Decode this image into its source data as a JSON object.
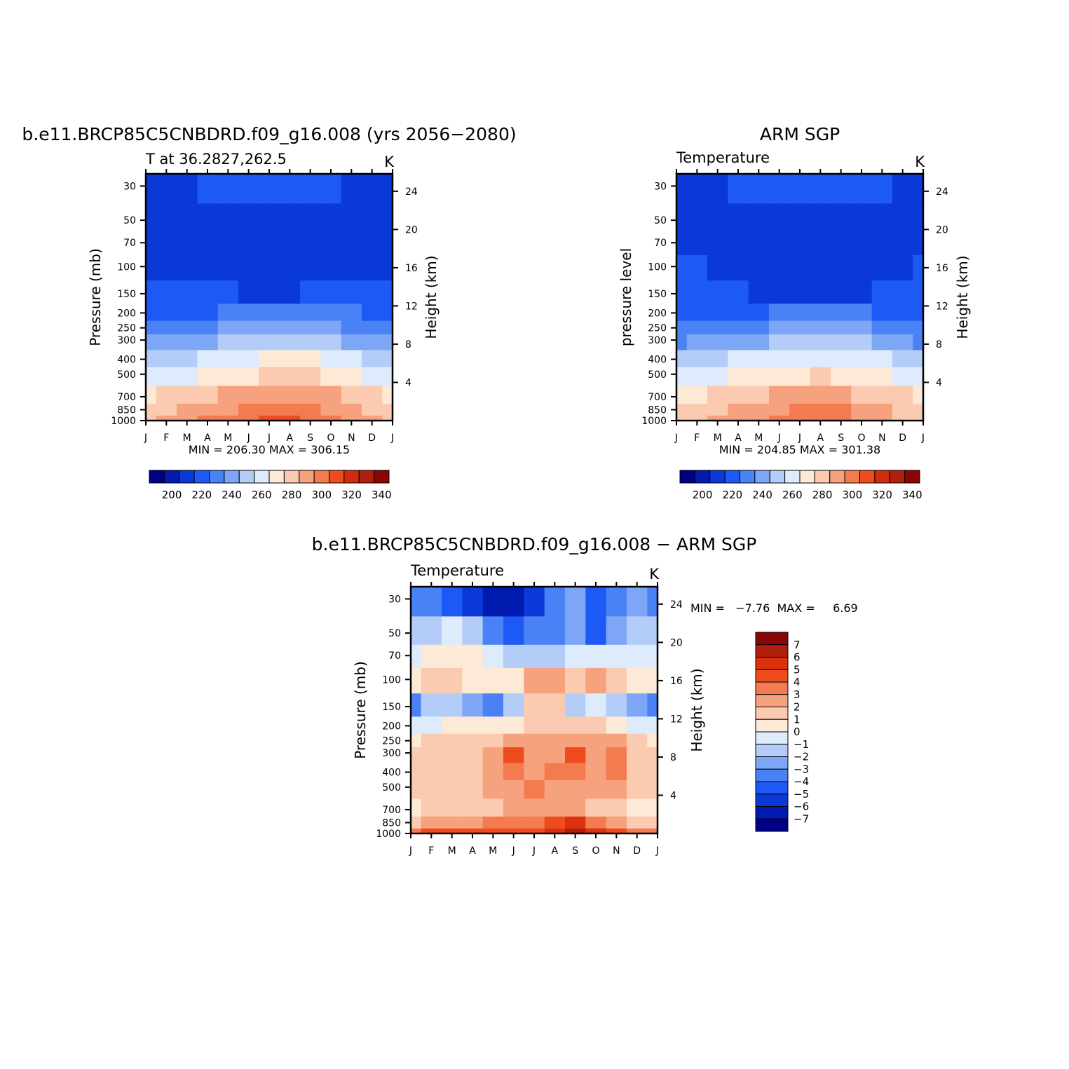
{
  "chart_data": [
    {
      "type": "heatmap",
      "panel": "model",
      "title": "b.e11.BRCP85C5CNBDRD.f09_g16.008 (yrs 2056−2080)",
      "left_label": "T at 36.2827,262.5",
      "units": "K",
      "ylabel": "Pressure (mb)",
      "ylabel_right": "Height (km)",
      "x_labels": [
        "J",
        "F",
        "M",
        "A",
        "M",
        "J",
        "J",
        "A",
        "S",
        "O",
        "N",
        "D",
        "J"
      ],
      "y_labels": [
        "30",
        "50",
        "70",
        "100",
        "150",
        "200",
        "250",
        "300",
        "400",
        "500",
        "700",
        "850",
        "1000"
      ],
      "height_labels": [
        "24",
        "20",
        "16",
        "12",
        "8",
        "4"
      ],
      "stats": "MIN = 206.30  MAX = 306.15",
      "colorbar_labels": [
        "200",
        "220",
        "240",
        "260",
        "280",
        "300",
        "320",
        "340"
      ],
      "months": [
        "Jan",
        "Feb",
        "Mar",
        "Apr",
        "May",
        "Jun",
        "Jul",
        "Aug",
        "Sep",
        "Oct",
        "Nov",
        "Dec",
        "Jan"
      ],
      "levels": [
        1000,
        850,
        700,
        500,
        400,
        300,
        250,
        200,
        150,
        100,
        70,
        50,
        30
      ],
      "temperature_K": [
        [
          284,
          288,
          292,
          296,
          299,
          302,
          305,
          306,
          303,
          298,
          292,
          288,
          284
        ],
        [
          280,
          283,
          287,
          291,
          294,
          297,
          300,
          301,
          299,
          294,
          288,
          284,
          280
        ],
        [
          273,
          276,
          279,
          283,
          286,
          289,
          292,
          293,
          291,
          286,
          281,
          277,
          273
        ],
        [
          259,
          261,
          264,
          268,
          271,
          274,
          277,
          278,
          276,
          272,
          267,
          263,
          259
        ],
        [
          249,
          251,
          254,
          257,
          260,
          263,
          266,
          267,
          265,
          261,
          256,
          252,
          249
        ],
        [
          235,
          237,
          239,
          242,
          245,
          248,
          251,
          252,
          250,
          246,
          242,
          238,
          235
        ],
        [
          227,
          228,
          230,
          232,
          235,
          238,
          241,
          242,
          240,
          236,
          232,
          229,
          227
        ],
        [
          222,
          222,
          223,
          224,
          225,
          227,
          229,
          230,
          229,
          227,
          225,
          223,
          222
        ],
        [
          217,
          217,
          217,
          216,
          215,
          214,
          214,
          214,
          215,
          216,
          217,
          217,
          217
        ],
        [
          214,
          214,
          214,
          213,
          212,
          211,
          210,
          210,
          211,
          212,
          213,
          214,
          214
        ],
        [
          212,
          212,
          212,
          212,
          211,
          210,
          210,
          210,
          210,
          210,
          211,
          212,
          212
        ],
        [
          210,
          211,
          212,
          213,
          214,
          214,
          214,
          214,
          214,
          214,
          213,
          211,
          210
        ],
        [
          207,
          210,
          213,
          215,
          217,
          218,
          219,
          219,
          218,
          216,
          213,
          210,
          207
        ]
      ]
    },
    {
      "type": "heatmap",
      "panel": "obs",
      "title": "ARM SGP",
      "left_label": "Temperature",
      "units": "K",
      "ylabel": "pressure level",
      "ylabel_right": "Height (km)",
      "x_labels": [
        "J",
        "F",
        "M",
        "A",
        "M",
        "J",
        "J",
        "A",
        "S",
        "O",
        "N",
        "D",
        "J"
      ],
      "y_labels": [
        "30",
        "50",
        "70",
        "100",
        "150",
        "200",
        "250",
        "300",
        "400",
        "500",
        "700",
        "850",
        "1000"
      ],
      "height_labels": [
        "24",
        "20",
        "16",
        "12",
        "8",
        "4"
      ],
      "stats": "MIN = 204.85  MAX = 301.38",
      "colorbar_labels": [
        "200",
        "220",
        "240",
        "260",
        "280",
        "300",
        "320",
        "340"
      ],
      "months": [
        "Jan",
        "Feb",
        "Mar",
        "Apr",
        "May",
        "Jun",
        "Jul",
        "Aug",
        "Sep",
        "Oct",
        "Nov",
        "Dec",
        "Jan"
      ],
      "levels": [
        1000,
        850,
        700,
        500,
        400,
        300,
        250,
        200,
        150,
        100,
        70,
        50,
        30
      ],
      "temperature_K": [
        [
          281,
          284,
          287,
          291,
          294,
          297,
          300,
          301,
          298,
          294,
          288,
          284,
          281
        ],
        [
          277,
          279,
          283,
          287,
          290,
          293,
          296,
          297,
          295,
          290,
          285,
          280,
          277
        ],
        [
          271,
          273,
          276,
          280,
          283,
          286,
          289,
          290,
          288,
          284,
          279,
          275,
          271
        ],
        [
          258,
          260,
          262,
          266,
          269,
          272,
          274,
          275,
          273,
          270,
          265,
          261,
          258
        ],
        [
          248,
          250,
          252,
          255,
          258,
          261,
          263,
          264,
          262,
          259,
          255,
          251,
          248
        ],
        [
          234,
          236,
          238,
          241,
          244,
          247,
          249,
          250,
          248,
          245,
          241,
          237,
          234
        ],
        [
          226,
          227,
          229,
          231,
          234,
          237,
          239,
          240,
          238,
          235,
          231,
          228,
          226
        ],
        [
          222,
          222,
          222,
          223,
          224,
          226,
          227,
          228,
          227,
          225,
          224,
          223,
          222
        ],
        [
          219,
          218,
          217,
          216,
          214,
          212,
          212,
          212,
          213,
          214,
          216,
          218,
          219
        ],
        [
          216,
          215,
          214,
          213,
          212,
          211,
          211,
          211,
          211,
          212,
          213,
          214,
          216
        ],
        [
          212,
          213,
          212,
          211,
          211,
          211,
          211,
          211,
          211,
          211,
          212,
          213,
          212
        ],
        [
          210,
          212,
          213,
          214,
          214,
          214,
          214,
          214,
          214,
          214,
          213,
          211,
          210
        ],
        [
          210,
          212,
          214,
          216,
          218,
          219,
          221,
          221,
          220,
          218,
          216,
          213,
          210
        ]
      ]
    },
    {
      "type": "heatmap",
      "panel": "difference",
      "title": "b.e11.BRCP85C5CNBDRD.f09_g16.008 − ARM SGP",
      "left_label": "Temperature",
      "units": "K",
      "ylabel": "Pressure (mb)",
      "ylabel_right": "Height (km)",
      "x_labels": [
        "J",
        "F",
        "M",
        "A",
        "M",
        "J",
        "J",
        "A",
        "S",
        "O",
        "N",
        "D",
        "J"
      ],
      "y_labels": [
        "30",
        "50",
        "70",
        "100",
        "150",
        "200",
        "250",
        "300",
        "400",
        "500",
        "700",
        "850",
        "1000"
      ],
      "height_labels": [
        "24",
        "20",
        "16",
        "12",
        "8",
        "4"
      ],
      "stats": "MIN =   −7.76  MAX =     6.69",
      "colorbar_labels": [
        "7",
        "6",
        "5",
        "4",
        "3",
        "2",
        "1",
        "0",
        "−1",
        "−2",
        "−3",
        "−4",
        "−5",
        "−6",
        "−7"
      ],
      "months": [
        "Jan",
        "Feb",
        "Mar",
        "Apr",
        "May",
        "Jun",
        "Jul",
        "Aug",
        "Sep",
        "Oct",
        "Nov",
        "Dec",
        "Jan"
      ],
      "levels": [
        1000,
        850,
        700,
        500,
        400,
        300,
        250,
        200,
        150,
        100,
        70,
        50,
        30
      ],
      "temperature_diff_K": [
        [
          3.5,
          4.0,
          4.2,
          4.4,
          4.2,
          4.5,
          4.8,
          5.5,
          6.5,
          5.0,
          4.5,
          3.6,
          3.5
        ],
        [
          1.8,
          2.5,
          2.8,
          2.8,
          3.0,
          3.2,
          3.6,
          4.5,
          5.5,
          3.5,
          2.8,
          1.8,
          1.8
        ],
        [
          0.5,
          1.5,
          1.5,
          1.2,
          1.6,
          2.0,
          2.5,
          2.0,
          2.2,
          1.8,
          1.6,
          0.8,
          0.5
        ],
        [
          1.2,
          1.5,
          1.6,
          1.5,
          2.2,
          2.6,
          3.0,
          2.8,
          2.8,
          2.4,
          2.5,
          1.5,
          1.2
        ],
        [
          1.5,
          1.6,
          1.8,
          1.7,
          2.8,
          3.2,
          2.6,
          3.0,
          3.6,
          2.6,
          3.0,
          1.8,
          1.5
        ],
        [
          1.2,
          1.4,
          1.8,
          1.6,
          2.8,
          4.2,
          2.8,
          2.5,
          4.2,
          2.6,
          3.0,
          1.8,
          1.2
        ],
        [
          0.8,
          1.0,
          1.4,
          1.3,
          1.8,
          2.5,
          2.6,
          2.8,
          2.8,
          2.4,
          2.0,
          1.2,
          0.8
        ],
        [
          -1.0,
          -0.5,
          0.2,
          0.3,
          0.2,
          0.6,
          1.6,
          1.8,
          1.5,
          1.0,
          0.5,
          -0.5,
          -1.0
        ],
        [
          -3.5,
          -2.0,
          -1.2,
          -2.8,
          -3.8,
          -1.6,
          1.5,
          1.4,
          -1.2,
          -0.8,
          -1.2,
          -2.5,
          -3.5
        ],
        [
          0.8,
          1.4,
          1.0,
          0.6,
          0.2,
          0.5,
          2.2,
          2.6,
          1.2,
          2.2,
          1.8,
          0.4,
          0.8
        ],
        [
          -0.6,
          0.2,
          0.8,
          0.5,
          -0.5,
          -1.6,
          -2.0,
          -1.4,
          -0.8,
          -0.8,
          -0.2,
          -0.4,
          -0.6
        ],
        [
          -1.6,
          -1.2,
          -0.8,
          -2.0,
          -4.0,
          -4.2,
          -4.0,
          -3.4,
          -2.6,
          -4.2,
          -2.2,
          -1.4,
          -1.6
        ],
        [
          -3.5,
          -4.0,
          -4.5,
          -5.5,
          -7.0,
          -6.5,
          -5.5,
          -4.0,
          -3.0,
          -5.0,
          -4.0,
          -3.0,
          -3.5
        ]
      ]
    }
  ],
  "colors": {
    "temperature_fills": [
      "#000087",
      "#0019AE",
      "#0B39D8",
      "#1D5AF5",
      "#4A82F6",
      "#7EA6F7",
      "#B4CCF8",
      "#DEEBFC",
      "#FDEAD6",
      "#FACBB0",
      "#F7A27E",
      "#F47B50",
      "#EE4B1E",
      "#D22C0F",
      "#B01E0C",
      "#890505"
    ],
    "difference_fills": [
      "#890505",
      "#B01E0C",
      "#DB310F",
      "#EE4B1E",
      "#F47B50",
      "#F7A27E",
      "#FACBB0",
      "#FDEAD6",
      "#DEEBFC",
      "#B4CCF8",
      "#7EA6F7",
      "#4A82F6",
      "#1D5AF5",
      "#0B39D8",
      "#0019AE",
      "#000087"
    ]
  }
}
